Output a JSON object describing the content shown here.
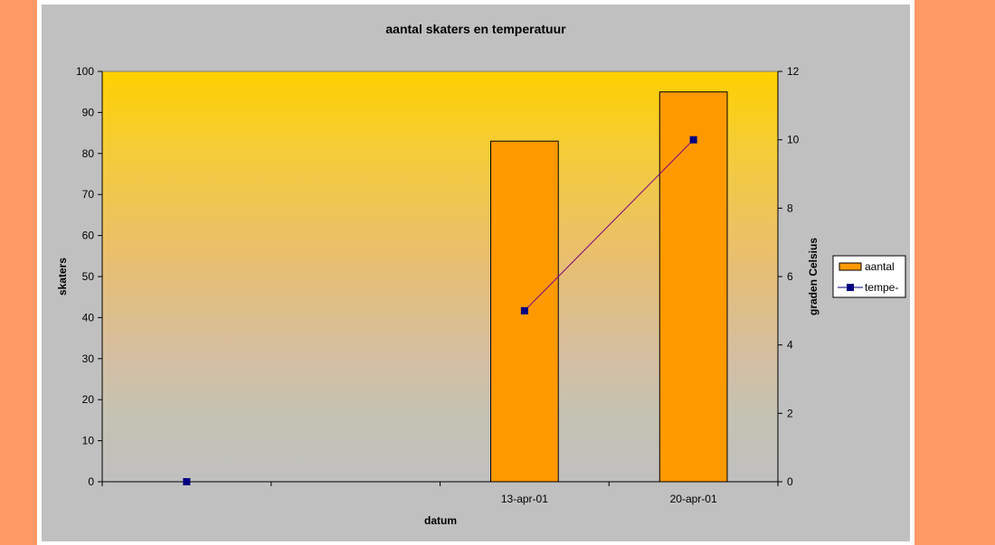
{
  "chart_data": {
    "type": "bar+line",
    "title": "aantal skaters en temperatuur",
    "xlabel": "datum",
    "ylabel_left": "skaters",
    "ylabel_right": "graden Celsius",
    "categories": [
      "",
      "",
      "13-apr-01",
      "20-apr-01"
    ],
    "ylim_left": [
      0,
      100
    ],
    "yticks_left": [
      0,
      10,
      20,
      30,
      40,
      50,
      60,
      70,
      80,
      90,
      100
    ],
    "ylim_right": [
      0,
      12
    ],
    "yticks_right": [
      0,
      2,
      4,
      6,
      8,
      10,
      12
    ],
    "series": [
      {
        "name": "aantal",
        "kind": "bar",
        "axis": "left",
        "values": [
          null,
          null,
          83,
          95
        ],
        "color": "#ff9900"
      },
      {
        "name": "tempe-",
        "kind": "line",
        "axis": "right",
        "values": [
          0,
          null,
          5,
          10
        ],
        "color": "#000080",
        "line_color": "#800080"
      }
    ],
    "grid": false,
    "legend": "right",
    "plot_gradient": [
      "#ffcc00",
      "#c0c0c0"
    ]
  },
  "colors": {
    "page_background": "#ff9966",
    "frame": "#ffffff",
    "chart_background": "#c0c0c0"
  }
}
